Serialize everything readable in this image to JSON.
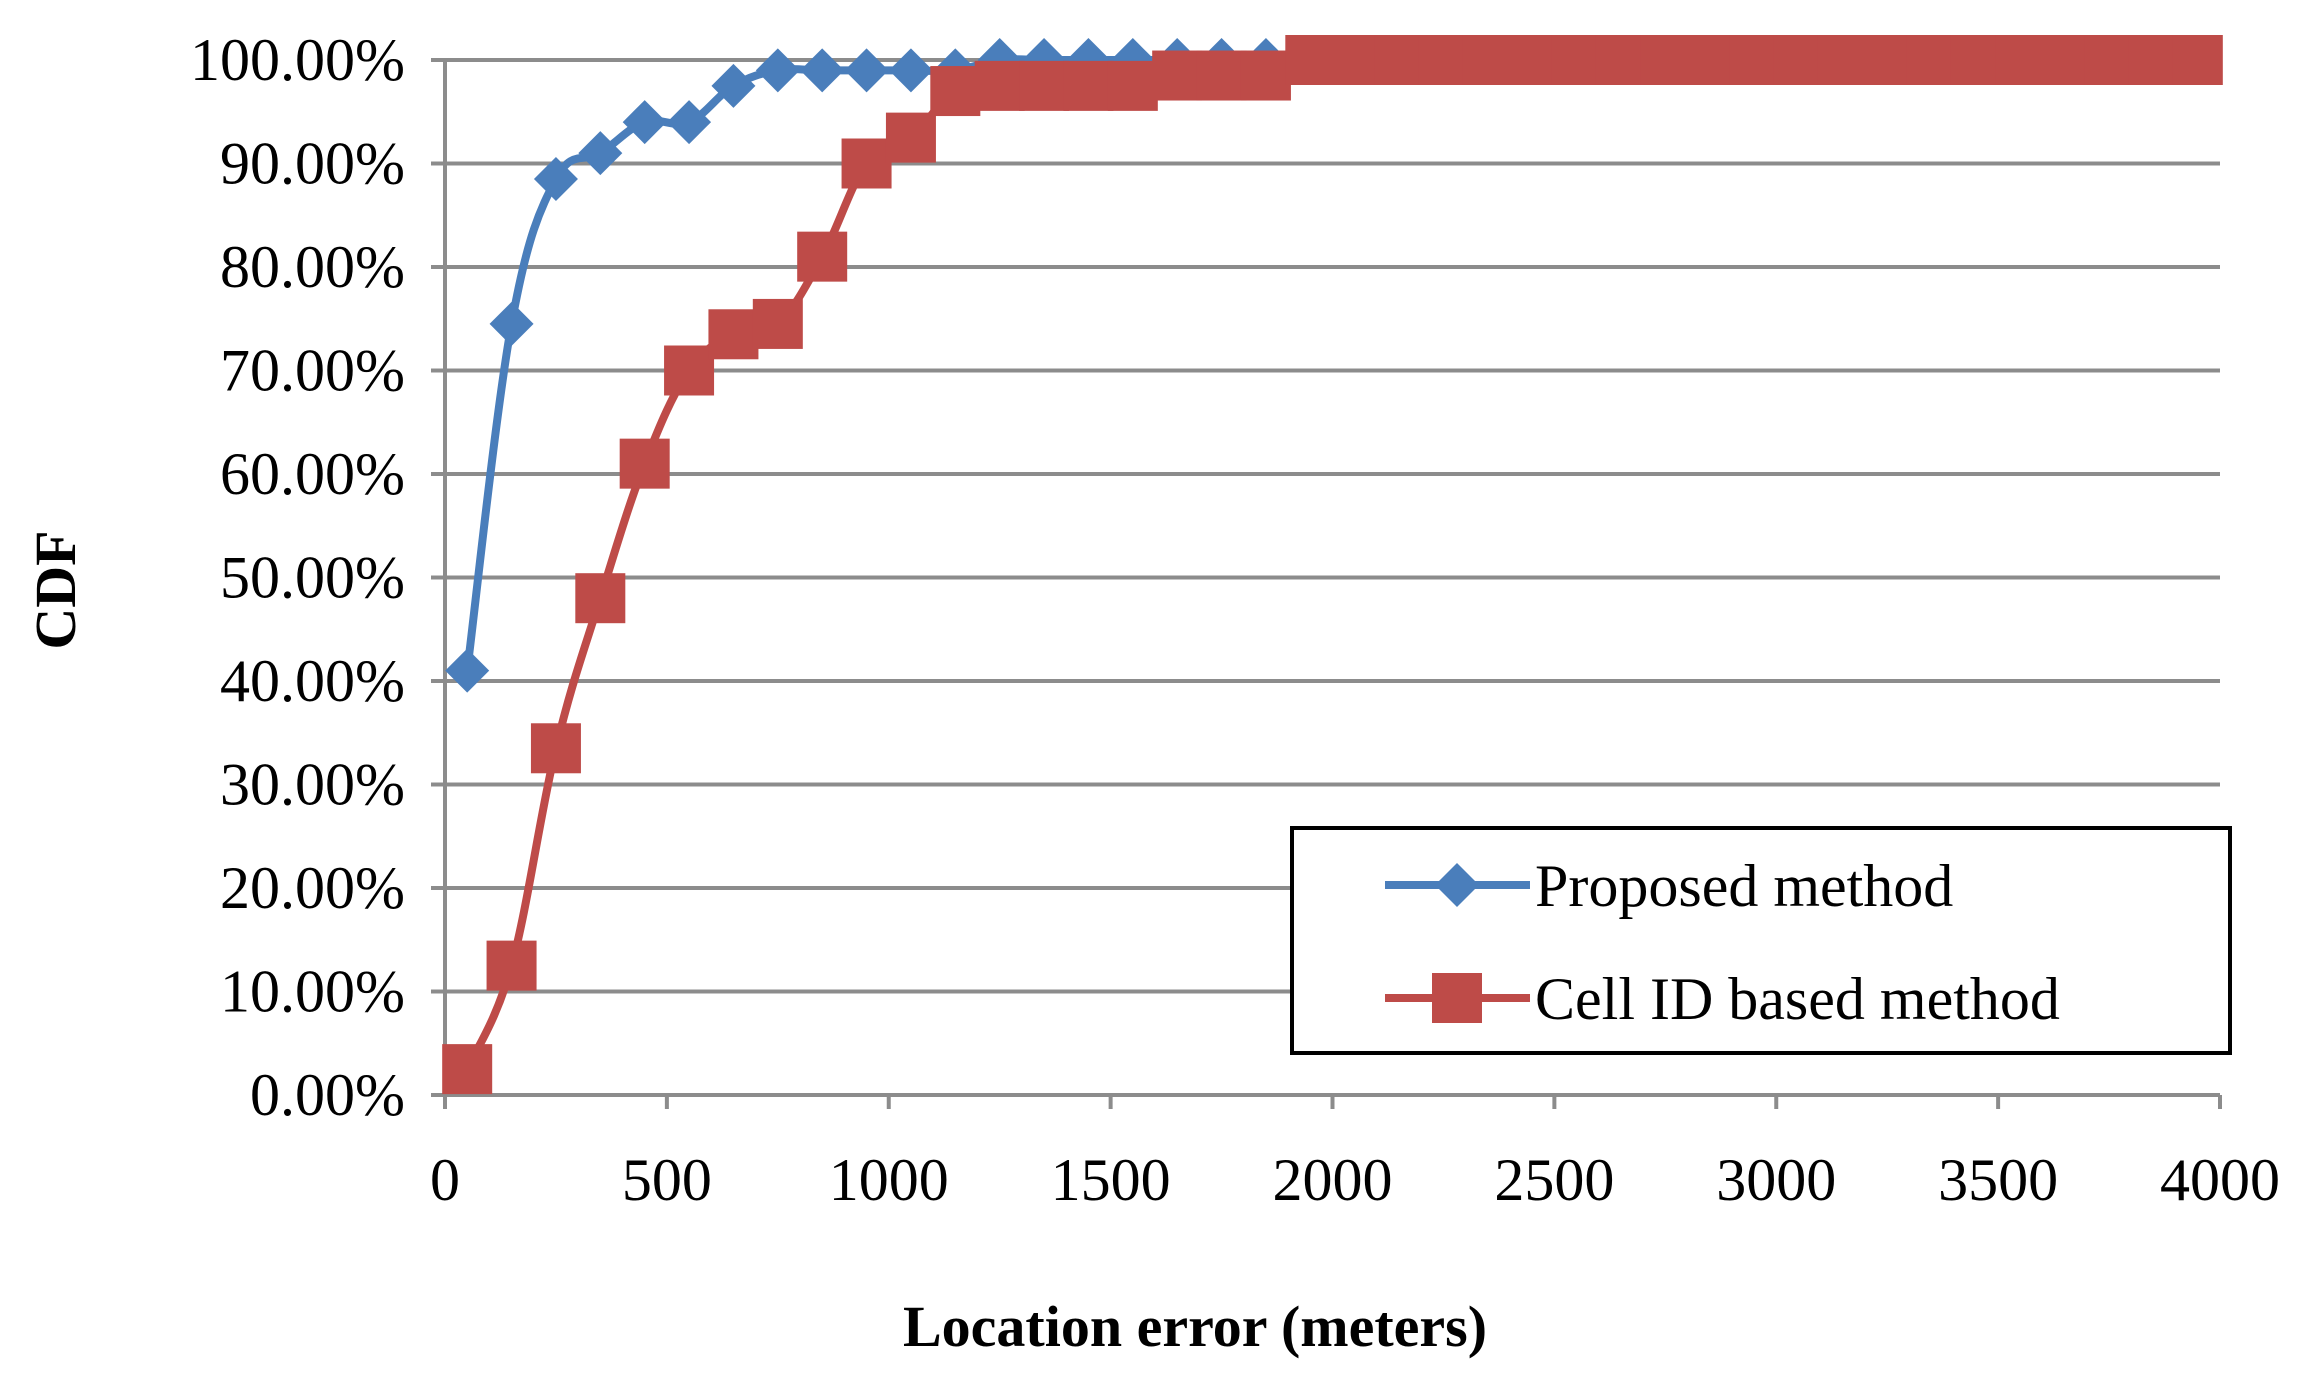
{
  "chart_data": {
    "type": "line",
    "title": "",
    "xlabel": "Location error (meters)",
    "ylabel": "CDF",
    "xlim": [
      0,
      4000
    ],
    "ylim": [
      0,
      1
    ],
    "x_ticks": [
      "0",
      "500",
      "1000",
      "1500",
      "2000",
      "2500",
      "3000",
      "3500",
      "4000"
    ],
    "y_ticks": [
      "0.00%",
      "10.00%",
      "20.00%",
      "30.00%",
      "40.00%",
      "50.00%",
      "60.00%",
      "70.00%",
      "80.00%",
      "90.00%",
      "100.00%"
    ],
    "grid": true,
    "legend_position": "bottom-right",
    "x": [
      50,
      150,
      250,
      350,
      450,
      550,
      650,
      750,
      850,
      950,
      1050,
      1150,
      1250,
      1350,
      1450,
      1550,
      1650,
      1750,
      1850,
      1950,
      2050,
      2150,
      2250,
      2350,
      2450,
      2550,
      2650,
      2750,
      2850,
      2950,
      3050,
      3150,
      3250,
      3350,
      3450,
      3550,
      3650,
      3750,
      3850,
      3950
    ],
    "series": [
      {
        "name": "Proposed method",
        "color": "#4a7ebb",
        "marker": "diamond",
        "values": [
          0.41,
          0.745,
          0.885,
          0.91,
          0.94,
          0.94,
          0.975,
          0.99,
          0.99,
          0.99,
          0.99,
          0.99,
          1.0,
          1.0,
          1.0,
          1.0,
          1.0,
          1.0,
          1.0,
          1.0,
          1.0,
          1.0,
          1.0,
          1.0,
          1.0,
          1.0,
          1.0,
          1.0,
          1.0,
          1.0,
          1.0,
          1.0,
          1.0,
          1.0,
          1.0,
          1.0,
          1.0,
          1.0,
          1.0,
          1.0
        ]
      },
      {
        "name": "Cell ID based method",
        "color": "#be4b48",
        "marker": "square",
        "values": [
          0.025,
          0.125,
          0.335,
          0.48,
          0.61,
          0.7,
          0.735,
          0.745,
          0.81,
          0.9,
          0.925,
          0.97,
          0.975,
          0.975,
          0.975,
          0.975,
          0.985,
          0.985,
          0.985,
          1.0,
          1.0,
          1.0,
          1.0,
          1.0,
          1.0,
          1.0,
          1.0,
          1.0,
          1.0,
          1.0,
          1.0,
          1.0,
          1.0,
          1.0,
          1.0,
          1.0,
          1.0,
          1.0,
          1.0,
          1.0
        ]
      }
    ]
  }
}
